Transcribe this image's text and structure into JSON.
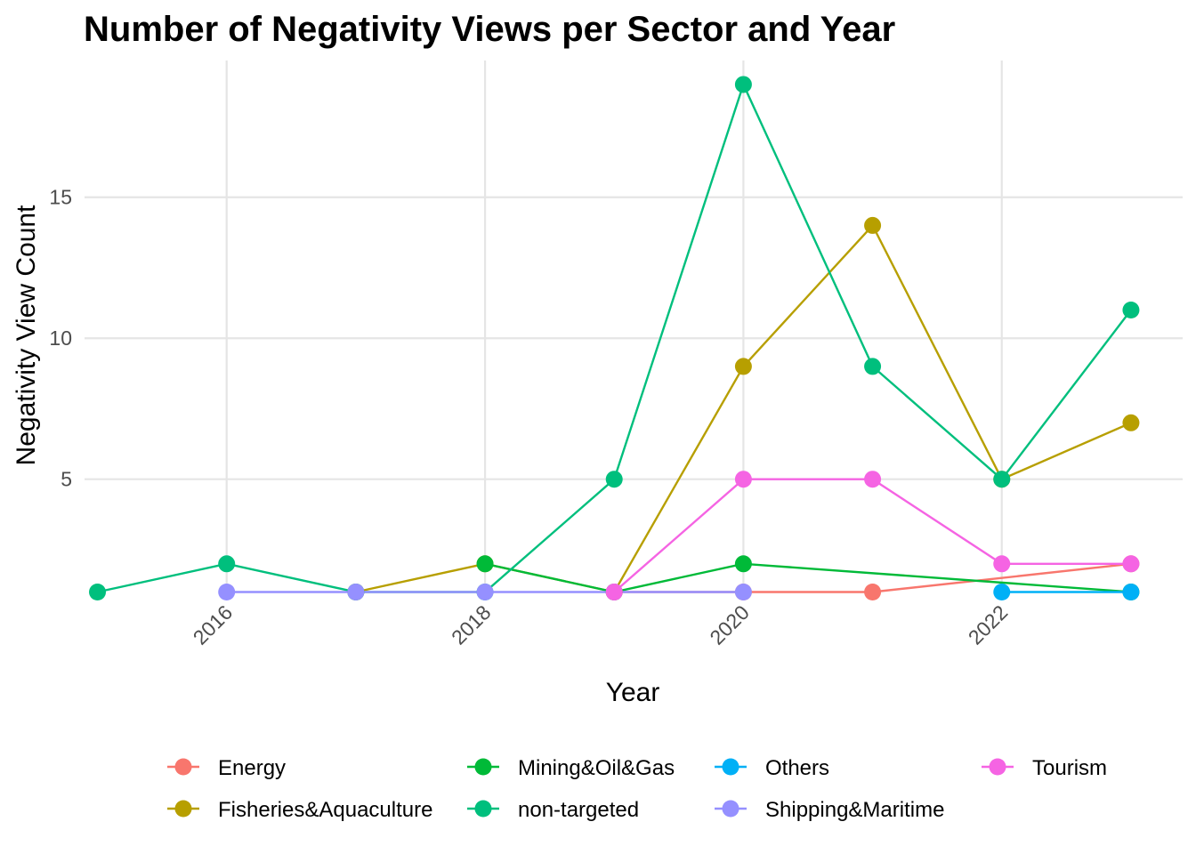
{
  "chart_data": {
    "type": "line",
    "title": "Number of Negativity Views per Sector and Year",
    "xlabel": "Year",
    "ylabel": "Negativity View Count",
    "xlim": [
      2014.9,
      2023.4
    ],
    "ylim": [
      0.7,
      19.85
    ],
    "x_ticks": [
      2016,
      2018,
      2020,
      2022
    ],
    "x_tick_labels": [
      "2016",
      "2018",
      "2020",
      "2022"
    ],
    "y_ticks": [
      5,
      10,
      15
    ],
    "y_tick_labels": [
      "5",
      "10",
      "15"
    ],
    "grid": true,
    "legend_position": "bottom",
    "series": [
      {
        "name": "Energy",
        "color": "#F8766D",
        "points": [
          [
            2019,
            1
          ],
          [
            2020,
            1
          ],
          [
            2021,
            1
          ],
          [
            2023,
            2
          ]
        ]
      },
      {
        "name": "Fisheries&Aquaculture",
        "color": "#B79F00",
        "points": [
          [
            2017,
            1
          ],
          [
            2018,
            2
          ],
          [
            2019,
            1
          ],
          [
            2020,
            9
          ],
          [
            2021,
            14
          ],
          [
            2022,
            5
          ],
          [
            2023,
            7
          ]
        ]
      },
      {
        "name": "Mining&Oil&Gas",
        "color": "#00BA38",
        "points": [
          [
            2018,
            2
          ],
          [
            2019,
            1
          ],
          [
            2020,
            2
          ],
          [
            2023,
            1
          ]
        ]
      },
      {
        "name": "non-targeted",
        "color": "#00BF7D",
        "points": [
          [
            2015,
            1
          ],
          [
            2016,
            2
          ],
          [
            2017,
            1
          ],
          [
            2018,
            1
          ],
          [
            2019,
            5
          ],
          [
            2020,
            19
          ],
          [
            2021,
            9
          ],
          [
            2022,
            5
          ],
          [
            2023,
            11
          ]
        ]
      },
      {
        "name": "Others",
        "color": "#00B0F6",
        "points": [
          [
            2022,
            1
          ],
          [
            2023,
            1
          ]
        ]
      },
      {
        "name": "Shipping&Maritime",
        "color": "#9590FF",
        "points": [
          [
            2016,
            1
          ],
          [
            2017,
            1
          ],
          [
            2018,
            1
          ],
          [
            2019,
            1
          ],
          [
            2020,
            1
          ]
        ]
      },
      {
        "name": "Tourism",
        "color": "#F564E3",
        "points": [
          [
            2019,
            1
          ],
          [
            2020,
            5
          ],
          [
            2021,
            5
          ],
          [
            2022,
            2
          ],
          [
            2023,
            2
          ]
        ]
      }
    ],
    "legend_order": [
      "Energy",
      "Fisheries&Aquaculture",
      "Mining&Oil&Gas",
      "non-targeted",
      "Others",
      "Shipping&Maritime",
      "Tourism"
    ]
  }
}
